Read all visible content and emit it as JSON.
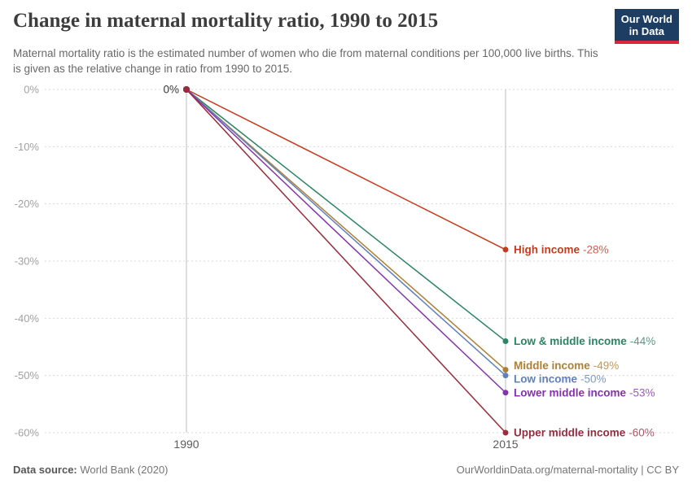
{
  "header": {
    "title": "Change in maternal mortality ratio, 1990 to 2015",
    "subtitle": "Maternal mortality ratio is the estimated number of women who die from maternal conditions per 100,000 live births. This is given as the relative change in ratio from 1990 to 2015.",
    "logo": {
      "line1": "Our World",
      "line2": "in Data",
      "bg_color": "#1d3d63",
      "accent_color": "#dc2638"
    }
  },
  "chart_data": {
    "type": "line",
    "x": [
      1990,
      2015
    ],
    "xtick_labels": [
      "1990",
      "2015"
    ],
    "yticks": [
      0,
      -10,
      -20,
      -30,
      -40,
      -50,
      -60
    ],
    "ytick_labels": [
      "0%",
      "-10%",
      "-20%",
      "-30%",
      "-40%",
      "-50%",
      "-60%"
    ],
    "ylim": [
      -60,
      0
    ],
    "grid": "dashed horizontal",
    "legend_position": "right-end-labels",
    "start_point_label": "0%",
    "series": [
      {
        "name": "High income",
        "values": [
          0,
          -28
        ],
        "end_label": "-28%",
        "color": "#c53b1d"
      },
      {
        "name": "Low & middle income",
        "values": [
          0,
          -44
        ],
        "end_label": "-44%",
        "color": "#2c8465"
      },
      {
        "name": "Middle income",
        "values": [
          0,
          -49
        ],
        "end_label": "-49%",
        "color": "#b07f35"
      },
      {
        "name": "Low income",
        "values": [
          0,
          -50
        ],
        "end_label": "-50%",
        "color": "#6080bd"
      },
      {
        "name": "Lower middle income",
        "values": [
          0,
          -53
        ],
        "end_label": "-53%",
        "color": "#8433ac"
      },
      {
        "name": "Upper middle income",
        "values": [
          0,
          -60
        ],
        "end_label": "-60%",
        "color": "#9a2c3c"
      }
    ]
  },
  "footer": {
    "source_label": "Data source:",
    "source_value": " World Bank (2020)",
    "credit": "OurWorldinData.org/maternal-mortality | CC BY"
  }
}
